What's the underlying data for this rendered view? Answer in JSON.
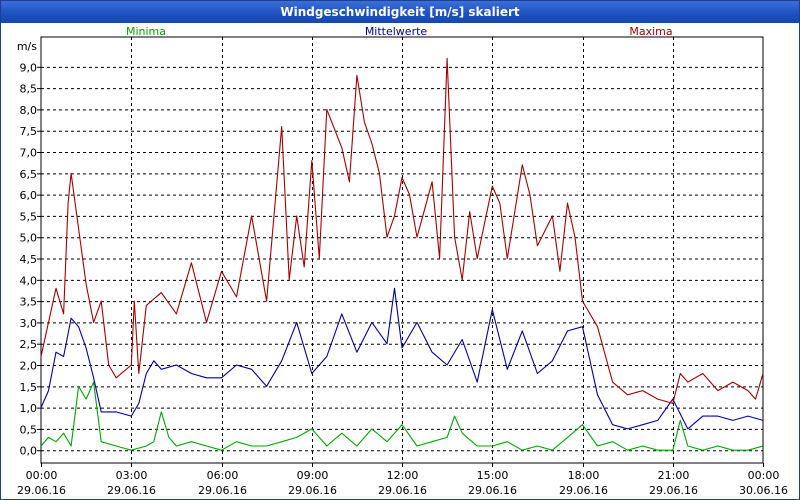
{
  "window": {
    "title": "Windgeschwindigkeit [m/s] skaliert"
  },
  "colors": {
    "minima": "#00aa00",
    "mittelwerte": "#0000aa",
    "maxima": "#aa0000",
    "title_bar": "#1d4fc0"
  },
  "chart_data": {
    "type": "line",
    "ylabel": "m/s",
    "ylim": [
      -0.3,
      9.7
    ],
    "yticks": [
      "0,0",
      "0,5",
      "1,0",
      "1,5",
      "2,0",
      "2,5",
      "3,0",
      "3,5",
      "4,0",
      "4,5",
      "5,0",
      "5,5",
      "6,0",
      "6,5",
      "7,0",
      "7,5",
      "8,0",
      "8,5",
      "9,0"
    ],
    "xlim": [
      0,
      24
    ],
    "xticks": [
      {
        "time": "00:00",
        "date": "29.06.16"
      },
      {
        "time": "03:00",
        "date": "29.06.16"
      },
      {
        "time": "06:00",
        "date": "29.06.16"
      },
      {
        "time": "09:00",
        "date": "29.06.16"
      },
      {
        "time": "12:00",
        "date": "29.06.16"
      },
      {
        "time": "15:00",
        "date": "29.06.16"
      },
      {
        "time": "18:00",
        "date": "29.06.16"
      },
      {
        "time": "21:00",
        "date": "29.06.16"
      },
      {
        "time": "00:00",
        "date": "30.06.16"
      }
    ],
    "series": [
      {
        "name": "Minima",
        "color": "#00aa00",
        "x": [
          0,
          0.25,
          0.5,
          0.75,
          1.0,
          1.25,
          1.5,
          1.75,
          2.0,
          2.5,
          3.0,
          3.5,
          3.75,
          4.0,
          4.25,
          4.5,
          5.0,
          5.5,
          6.0,
          6.5,
          7.0,
          7.5,
          8.0,
          8.5,
          9.0,
          9.5,
          10.0,
          10.5,
          11.0,
          11.5,
          12.0,
          12.5,
          13.0,
          13.5,
          13.75,
          14.0,
          14.5,
          15.0,
          15.5,
          16.0,
          16.5,
          17.0,
          17.5,
          18.0,
          18.5,
          19.0,
          19.5,
          20.0,
          20.5,
          21.0,
          21.25,
          21.5,
          22.0,
          22.5,
          23.0,
          23.5,
          24.0
        ],
        "values": [
          0.1,
          0.3,
          0.2,
          0.4,
          0.1,
          1.5,
          1.2,
          1.6,
          0.2,
          0.1,
          0.0,
          0.1,
          0.2,
          0.9,
          0.3,
          0.1,
          0.2,
          0.1,
          0.0,
          0.2,
          0.1,
          0.1,
          0.2,
          0.3,
          0.5,
          0.1,
          0.4,
          0.1,
          0.5,
          0.2,
          0.6,
          0.1,
          0.2,
          0.3,
          0.8,
          0.4,
          0.1,
          0.1,
          0.2,
          0.0,
          0.1,
          0.0,
          0.3,
          0.6,
          0.1,
          0.2,
          0.0,
          0.1,
          0.0,
          0.0,
          0.7,
          0.1,
          0.0,
          0.1,
          0.0,
          0.0,
          0.1
        ]
      },
      {
        "name": "Mittelwerte",
        "color": "#0000aa",
        "x": [
          0,
          0.25,
          0.5,
          0.75,
          1.0,
          1.25,
          1.5,
          1.75,
          2.0,
          2.25,
          2.5,
          3.0,
          3.25,
          3.5,
          3.75,
          4.0,
          4.5,
          5.0,
          5.5,
          6.0,
          6.5,
          7.0,
          7.5,
          8.0,
          8.5,
          9.0,
          9.5,
          10.0,
          10.5,
          11.0,
          11.5,
          11.75,
          12.0,
          12.5,
          13.0,
          13.5,
          14.0,
          14.5,
          15.0,
          15.5,
          16.0,
          16.5,
          17.0,
          17.5,
          18.0,
          18.5,
          19.0,
          19.5,
          20.0,
          20.5,
          21.0,
          21.5,
          22.0,
          22.5,
          23.0,
          23.5,
          24.0
        ],
        "values": [
          1.0,
          1.4,
          2.3,
          2.2,
          3.1,
          2.9,
          2.4,
          1.7,
          0.9,
          0.9,
          0.9,
          0.8,
          1.1,
          1.8,
          2.1,
          1.9,
          2.0,
          1.8,
          1.7,
          1.7,
          2.0,
          1.9,
          1.5,
          2.1,
          3.0,
          1.8,
          2.2,
          3.2,
          2.3,
          3.0,
          2.5,
          3.8,
          2.4,
          3.0,
          2.3,
          2.0,
          2.6,
          1.6,
          3.3,
          1.9,
          2.8,
          1.8,
          2.1,
          2.8,
          2.9,
          1.3,
          0.6,
          0.5,
          0.6,
          0.7,
          1.2,
          0.5,
          0.8,
          0.8,
          0.7,
          0.8,
          0.7
        ]
      },
      {
        "name": "Maxima",
        "color": "#aa0000",
        "x": [
          0,
          0.25,
          0.5,
          0.75,
          0.9,
          1.0,
          1.25,
          1.5,
          1.75,
          2.0,
          2.25,
          2.5,
          3.0,
          3.1,
          3.25,
          3.5,
          4.0,
          4.5,
          5.0,
          5.5,
          6.0,
          6.5,
          7.0,
          7.5,
          8.0,
          8.25,
          8.5,
          8.75,
          9.0,
          9.25,
          9.5,
          10.0,
          10.25,
          10.5,
          10.75,
          11.0,
          11.25,
          11.5,
          11.75,
          12.0,
          12.25,
          12.5,
          13.0,
          13.25,
          13.5,
          13.75,
          14.0,
          14.25,
          14.5,
          15.0,
          15.25,
          15.5,
          16.0,
          16.25,
          16.5,
          17.0,
          17.25,
          17.5,
          17.75,
          18.0,
          18.5,
          19.0,
          19.5,
          20.0,
          20.5,
          21.0,
          21.25,
          21.5,
          22.0,
          22.5,
          23.0,
          23.5,
          23.75,
          24.0
        ],
        "values": [
          2.2,
          3.0,
          3.8,
          3.2,
          5.8,
          6.5,
          5.2,
          3.9,
          3.0,
          3.5,
          2.0,
          1.7,
          2.0,
          3.5,
          1.8,
          3.4,
          3.7,
          3.2,
          4.4,
          3.0,
          4.2,
          3.6,
          5.5,
          3.5,
          7.6,
          4.0,
          5.5,
          4.3,
          6.8,
          4.5,
          8.0,
          7.1,
          6.3,
          8.8,
          7.7,
          7.2,
          6.5,
          5.0,
          5.5,
          6.4,
          6.0,
          5.0,
          6.3,
          4.5,
          9.2,
          5.0,
          4.0,
          5.6,
          4.5,
          6.2,
          5.8,
          4.5,
          6.7,
          6.0,
          4.8,
          5.5,
          4.2,
          5.8,
          5.0,
          3.5,
          2.9,
          1.6,
          1.3,
          1.4,
          1.2,
          1.1,
          1.8,
          1.6,
          1.8,
          1.4,
          1.6,
          1.4,
          1.2,
          1.8
        ]
      }
    ]
  }
}
